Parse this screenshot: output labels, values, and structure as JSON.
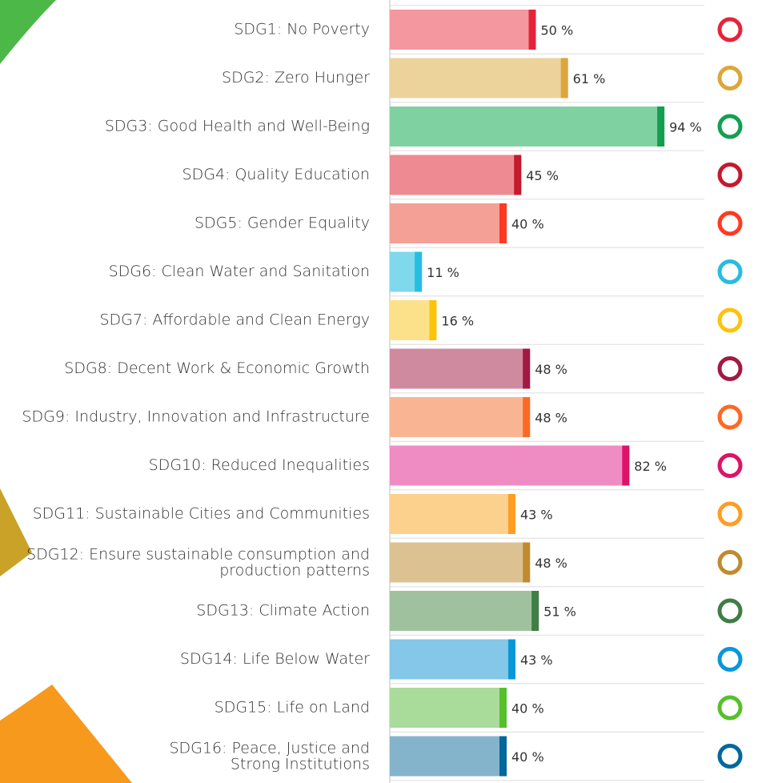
{
  "chart_data": {
    "type": "hbar",
    "categories": [
      "SDG1: No Poverty",
      "SDG2: Zero Hunger",
      "SDG3: Good Health and Well-Being",
      "SDG4: Quality Education",
      "SDG5: Gender Equality",
      "SDG6: Clean Water and Sanitation",
      "SDG7: Affordable and Clean Energy",
      "SDG8: Decent Work & Economic Growth",
      "SDG9: Industry, Innovation and Infrastructure",
      "SDG10: Reduced Inequalities",
      "SDG11: Sustainable Cities and Communities",
      "SDG12: Ensure sustainable consumption and\nproduction patterns",
      "SDG13: Climate Action",
      "SDG14: Life Below Water",
      "SDG15: Life on Land",
      "SDG16: Peace, Justice and\nStrong Institutions"
    ],
    "values": [
      50,
      61,
      94,
      45,
      40,
      11,
      16,
      48,
      48,
      82,
      43,
      48,
      51,
      43,
      40,
      40
    ],
    "value_labels": [
      "50 %",
      "61 %",
      "94 %",
      "45 %",
      "40 %",
      "11 %",
      "16 %",
      "48 %",
      "48 %",
      "82 %",
      "43 %",
      "48 %",
      "51 %",
      "43 %",
      "40 %",
      "40 %"
    ],
    "colors": [
      "#f4979e",
      "#ecd39c",
      "#80d1a2",
      "#ee8a91",
      "#f4a097",
      "#7fd8ec",
      "#fde18a",
      "#d08aa0",
      "#f9b593",
      "#ef8cc3",
      "#fcd08d",
      "#dcc293",
      "#a0c19d",
      "#84c7e8",
      "#a9dc9a",
      "#84b4cc"
    ],
    "cap_colors": [
      "#e5243b",
      "#dda63a",
      "#12a050",
      "#c5192d",
      "#ff3a21",
      "#26bde2",
      "#fcc30b",
      "#a21942",
      "#fd6925",
      "#dd1367",
      "#fd9d24",
      "#bf8b2e",
      "#3f7e44",
      "#0a97d9",
      "#56c02b",
      "#00689d"
    ],
    "xlim": [
      0,
      100
    ]
  }
}
